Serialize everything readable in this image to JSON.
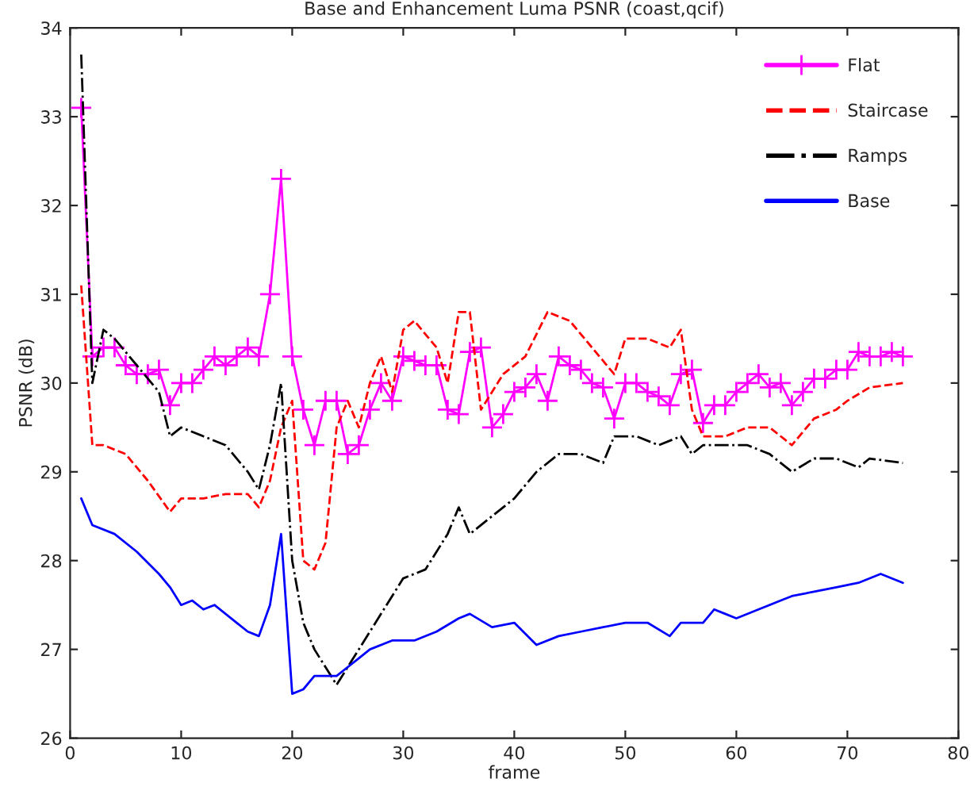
{
  "chart_data": {
    "type": "line",
    "title": "Base and Enhancement Luma PSNR (coast,qcif)",
    "xlabel": "frame",
    "ylabel": "PSNR (dB)",
    "xlim": [
      0,
      80
    ],
    "xticks": [
      0,
      10,
      20,
      30,
      40,
      50,
      60,
      70,
      80
    ],
    "ylim": [
      26,
      34
    ],
    "yticks": [
      26,
      27,
      28,
      29,
      30,
      31,
      32,
      33,
      34
    ],
    "grid": false,
    "legend": "top right",
    "series": [
      {
        "name": "Flat",
        "color": "#ff00ff",
        "marker": "cross",
        "line_style": "solid",
        "x": [
          1,
          2,
          3,
          4,
          5,
          6,
          7,
          8,
          9,
          10,
          11,
          12,
          13,
          14,
          15,
          16,
          17,
          18,
          19,
          20,
          21,
          22,
          23,
          24,
          25,
          26,
          27,
          28,
          29,
          30,
          31,
          32,
          33,
          34,
          35,
          36,
          37,
          38,
          39,
          40,
          41,
          42,
          43,
          44,
          45,
          46,
          47,
          48,
          49,
          50,
          51,
          52,
          53,
          54,
          55,
          56,
          57,
          58,
          59,
          60,
          61,
          62,
          63,
          64,
          65,
          66,
          67,
          68,
          69,
          70,
          71,
          72,
          73,
          74,
          75
        ],
        "values": [
          33.1,
          30.3,
          30.4,
          30.4,
          30.2,
          30.1,
          30.1,
          30.15,
          29.75,
          30.0,
          30.0,
          30.15,
          30.3,
          30.2,
          30.3,
          30.4,
          30.3,
          31.0,
          32.3,
          30.3,
          29.7,
          29.3,
          29.8,
          29.8,
          29.2,
          29.3,
          29.7,
          30.0,
          29.8,
          30.3,
          30.25,
          30.2,
          30.2,
          29.7,
          29.65,
          30.35,
          30.4,
          29.5,
          29.65,
          29.9,
          29.95,
          30.1,
          29.8,
          30.3,
          30.2,
          30.15,
          30.0,
          29.95,
          29.6,
          30.0,
          30.0,
          29.9,
          29.85,
          29.75,
          30.1,
          30.15,
          29.55,
          29.75,
          29.75,
          29.9,
          30.0,
          30.1,
          29.95,
          30.0,
          29.75,
          29.9,
          30.05,
          30.05,
          30.15,
          30.15,
          30.35,
          30.3,
          30.3,
          30.35,
          30.3
        ]
      },
      {
        "name": "Staircase",
        "color": "#ff0000",
        "marker": "none",
        "line_style": "dashed",
        "x": [
          1,
          2,
          3,
          5,
          7,
          9,
          10,
          12,
          14,
          16,
          17,
          18,
          19,
          20,
          21,
          22,
          23,
          24,
          25,
          26,
          27,
          28,
          29,
          30,
          31,
          33,
          34,
          35,
          36,
          37,
          39,
          41,
          43,
          45,
          47,
          49,
          50,
          52,
          54,
          55,
          56,
          57,
          59,
          61,
          63,
          65,
          67,
          69,
          70,
          72,
          75
        ],
        "values": [
          31.1,
          29.3,
          29.3,
          29.2,
          28.9,
          28.55,
          28.7,
          28.7,
          28.75,
          28.75,
          28.6,
          28.9,
          29.5,
          29.8,
          28.0,
          27.9,
          28.2,
          29.5,
          29.8,
          29.5,
          30.0,
          30.3,
          29.9,
          30.6,
          30.7,
          30.4,
          30.0,
          30.8,
          30.8,
          29.7,
          30.1,
          30.3,
          30.8,
          30.7,
          30.4,
          30.1,
          30.5,
          30.5,
          30.4,
          30.6,
          29.7,
          29.4,
          29.4,
          29.5,
          29.5,
          29.3,
          29.6,
          29.7,
          29.8,
          29.95,
          30.0
        ]
      },
      {
        "name": "Ramps",
        "color": "#000000",
        "marker": "none",
        "line_style": "dashdot",
        "x": [
          1,
          2,
          3,
          4,
          6,
          8,
          9,
          10,
          12,
          14,
          16,
          17,
          18,
          19,
          20,
          21,
          22,
          23,
          24,
          25,
          27,
          29,
          30,
          32,
          34,
          35,
          36,
          38,
          40,
          42,
          44,
          46,
          48,
          49,
          51,
          53,
          55,
          56,
          57,
          59,
          61,
          63,
          65,
          67,
          69,
          71,
          72,
          75
        ],
        "values": [
          33.7,
          30.0,
          30.6,
          30.5,
          30.2,
          29.9,
          29.4,
          29.5,
          29.4,
          29.3,
          29.0,
          28.8,
          29.3,
          30.0,
          28.0,
          27.3,
          27.0,
          26.8,
          26.6,
          26.8,
          27.2,
          27.6,
          27.8,
          27.9,
          28.3,
          28.6,
          28.3,
          28.5,
          28.7,
          29.0,
          29.2,
          29.2,
          29.1,
          29.4,
          29.4,
          29.3,
          29.4,
          29.2,
          29.3,
          29.3,
          29.3,
          29.2,
          29.0,
          29.15,
          29.15,
          29.05,
          29.15,
          29.1
        ]
      },
      {
        "name": "Base",
        "color": "#0000ff",
        "marker": "none",
        "line_style": "solid",
        "x": [
          1,
          2,
          4,
          6,
          8,
          9,
          10,
          11,
          12,
          13,
          15,
          16,
          17,
          18,
          19,
          20,
          21,
          22,
          24,
          25,
          26,
          27,
          29,
          31,
          33,
          35,
          36,
          38,
          40,
          42,
          44,
          46,
          48,
          50,
          52,
          54,
          55,
          57,
          58,
          59,
          60,
          62,
          64,
          65,
          67,
          69,
          71,
          73,
          75
        ],
        "values": [
          28.7,
          28.4,
          28.3,
          28.1,
          27.85,
          27.7,
          27.5,
          27.55,
          27.45,
          27.5,
          27.3,
          27.2,
          27.15,
          27.5,
          28.3,
          26.5,
          26.55,
          26.7,
          26.7,
          26.8,
          26.9,
          27.0,
          27.1,
          27.1,
          27.2,
          27.35,
          27.4,
          27.25,
          27.3,
          27.05,
          27.15,
          27.2,
          27.25,
          27.3,
          27.3,
          27.15,
          27.3,
          27.3,
          27.45,
          27.4,
          27.35,
          27.45,
          27.55,
          27.6,
          27.65,
          27.7,
          27.75,
          27.85,
          27.75
        ]
      }
    ]
  }
}
